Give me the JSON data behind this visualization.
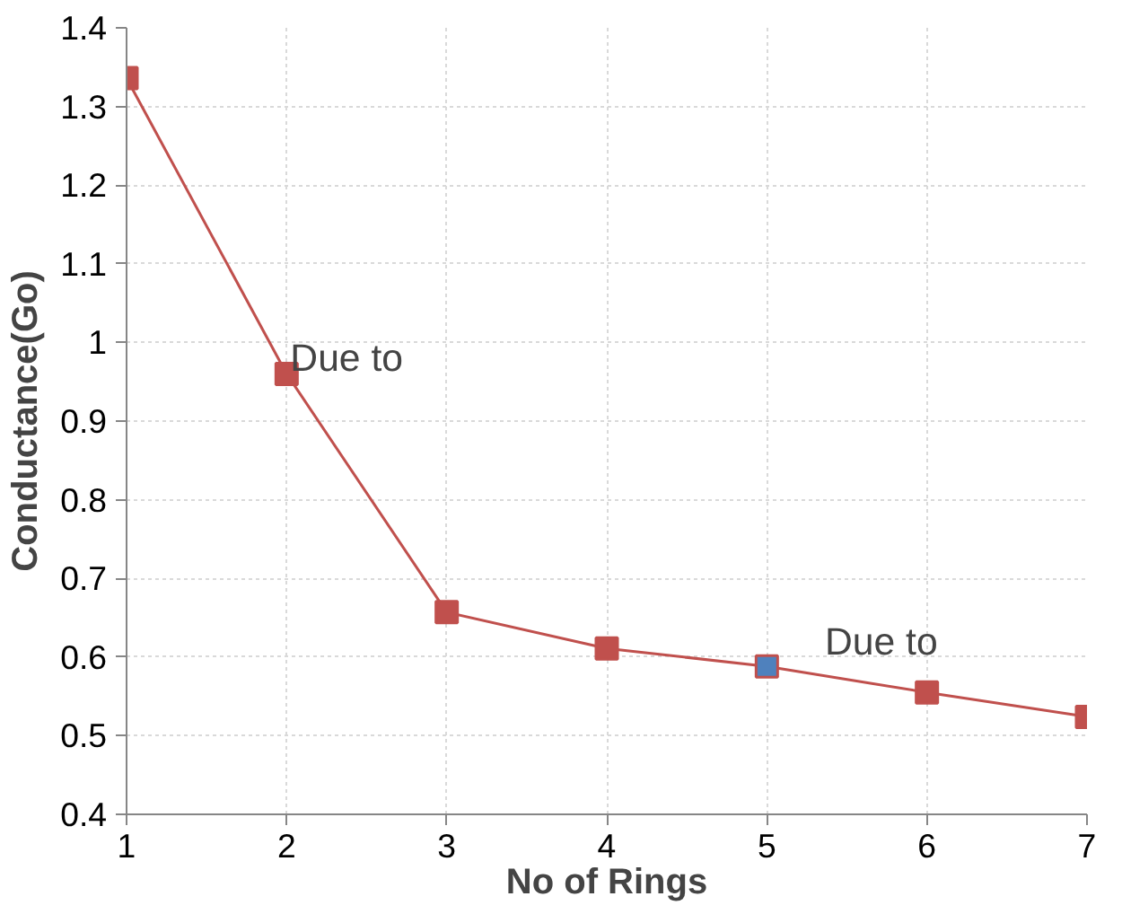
{
  "chart_data": {
    "type": "line",
    "xlabel": "No of Rings",
    "ylabel": "Conductance(Go)",
    "x": [
      1,
      2,
      3,
      4,
      5,
      6,
      7
    ],
    "series": [
      {
        "color": "#c0504d",
        "values": [
          1.336,
          0.96,
          0.657,
          0.611,
          0.588,
          0.555,
          0.524
        ],
        "colors": [
          "#c0504d",
          "#c0504d",
          "#c0504d",
          "#c0504d",
          "#4f81bd",
          "#c0504d",
          "#c0504d"
        ]
      }
    ],
    "xlim": [
      1,
      7
    ],
    "xticks": [
      1,
      2,
      3,
      4,
      5,
      6,
      7
    ],
    "ylim": [
      0.4,
      1.4
    ],
    "yticks": [
      0.4,
      0.5,
      0.6,
      0.7,
      0.8,
      0.9,
      1,
      1.1,
      1.2,
      1.3,
      1.4
    ],
    "grid": true,
    "marker": "square",
    "line_style": "solid",
    "annotations": [
      {
        "text": "Due to",
        "x": 2,
        "y": 0.98
      },
      "Due to"
    ]
  }
}
